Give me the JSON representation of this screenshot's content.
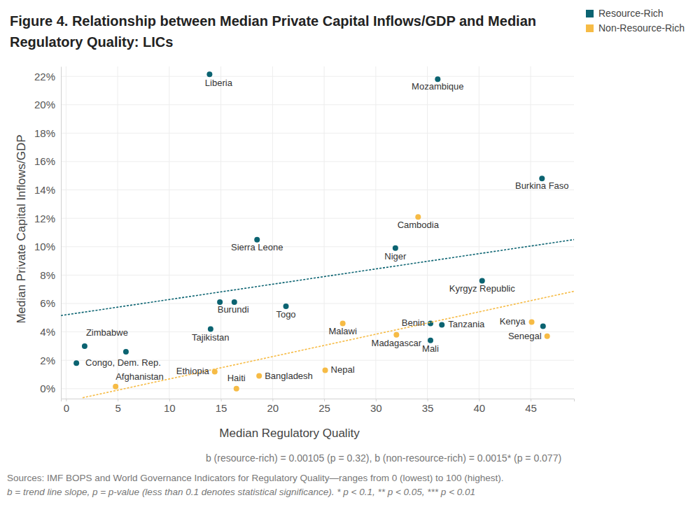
{
  "chart_data": {
    "type": "scatter",
    "title": "Figure 4. Relationship between Median Private Capital Inflows/GDP and Median Regulatory Quality: LICs",
    "x_label": "Median Regulatory Quality",
    "y_label": "Median Private Capital Inflows/GDP",
    "xlim": [
      -0.5,
      49.2
    ],
    "ylim": [
      -0.7,
      22.7
    ],
    "xticks": [
      0,
      5,
      10,
      15,
      20,
      25,
      30,
      35,
      40,
      45
    ],
    "yticks": [
      {
        "value": 0,
        "label": "0%"
      },
      {
        "value": 2,
        "label": "2%"
      },
      {
        "value": 4,
        "label": "4%"
      },
      {
        "value": 6,
        "label": "6%"
      },
      {
        "value": 8,
        "label": "8%"
      },
      {
        "value": 10,
        "label": "10%"
      },
      {
        "value": 12,
        "label": "12%"
      },
      {
        "value": 14,
        "label": "14%"
      },
      {
        "value": 16,
        "label": "16%"
      },
      {
        "value": 18,
        "label": "18%"
      },
      {
        "value": 20,
        "label": "20%"
      },
      {
        "value": 22,
        "label": "22%"
      }
    ],
    "grid": true,
    "legend": "top-right",
    "series": [
      {
        "name": "Resource-Rich",
        "color": "#0b6371",
        "marker": "circle",
        "line_style": "dashed",
        "labels": [
          "Liberia",
          "Mozambique",
          "Burkina Faso",
          "Sierra Leone",
          "Niger",
          "Kyrgyz Republic",
          "Burundi",
          null,
          "Togo",
          "Tajikistan",
          "Zimbabwe",
          "Congo, Dem. Rep.",
          null,
          "Benin",
          "Tanzania",
          "Mali",
          null
        ],
        "x": [
          13.9,
          36.0,
          46.1,
          18.5,
          31.9,
          40.3,
          14.9,
          16.3,
          21.3,
          14.0,
          1.8,
          1.0,
          5.8,
          35.3,
          36.4,
          35.3,
          46.2
        ],
        "values": [
          22.15,
          21.8,
          14.8,
          10.5,
          9.9,
          7.6,
          6.1,
          6.1,
          5.8,
          4.2,
          3.0,
          1.8,
          2.6,
          4.6,
          4.5,
          3.4,
          4.4
        ],
        "trend": {
          "x": [
            -0.5,
            49.2
          ],
          "values": [
            5.15,
            10.5
          ]
        }
      },
      {
        "name": "Non-Resource-Rich",
        "color": "#f6bb45",
        "marker": "circle",
        "line_style": "dashed",
        "labels": [
          "Cambodia",
          "Malawi",
          "Madagascar",
          "Kenya",
          "Senegal",
          "Nepal",
          "Bangladesh",
          "Haiti",
          "Ethiopia",
          "Afghanistan"
        ],
        "x": [
          34.1,
          26.8,
          32.0,
          45.1,
          46.6,
          25.1,
          18.7,
          16.5,
          14.4,
          4.8
        ],
        "values": [
          12.1,
          4.6,
          3.8,
          4.7,
          3.7,
          1.3,
          0.9,
          0.0,
          1.2,
          0.15
        ],
        "trend": {
          "x": [
            1.6,
            49.2
          ],
          "values": [
            -0.64,
            6.86
          ]
        }
      }
    ],
    "annotations": [
      "b (resource-rich) = 0.00105 (p = 0.32), b (non-resource-rich) = 0.0015* (p = 0.077)"
    ],
    "footnotes": [
      "Sources: IMF BOPS and World Governance Indicators for Regulatory Quality—ranges from 0 (lowest) to 100 (highest).",
      "b = trend line slope, p = p-value (less than 0.1 denotes statistical significance). * p < 0.1, ** p < 0.05, *** p < 0.01"
    ]
  }
}
